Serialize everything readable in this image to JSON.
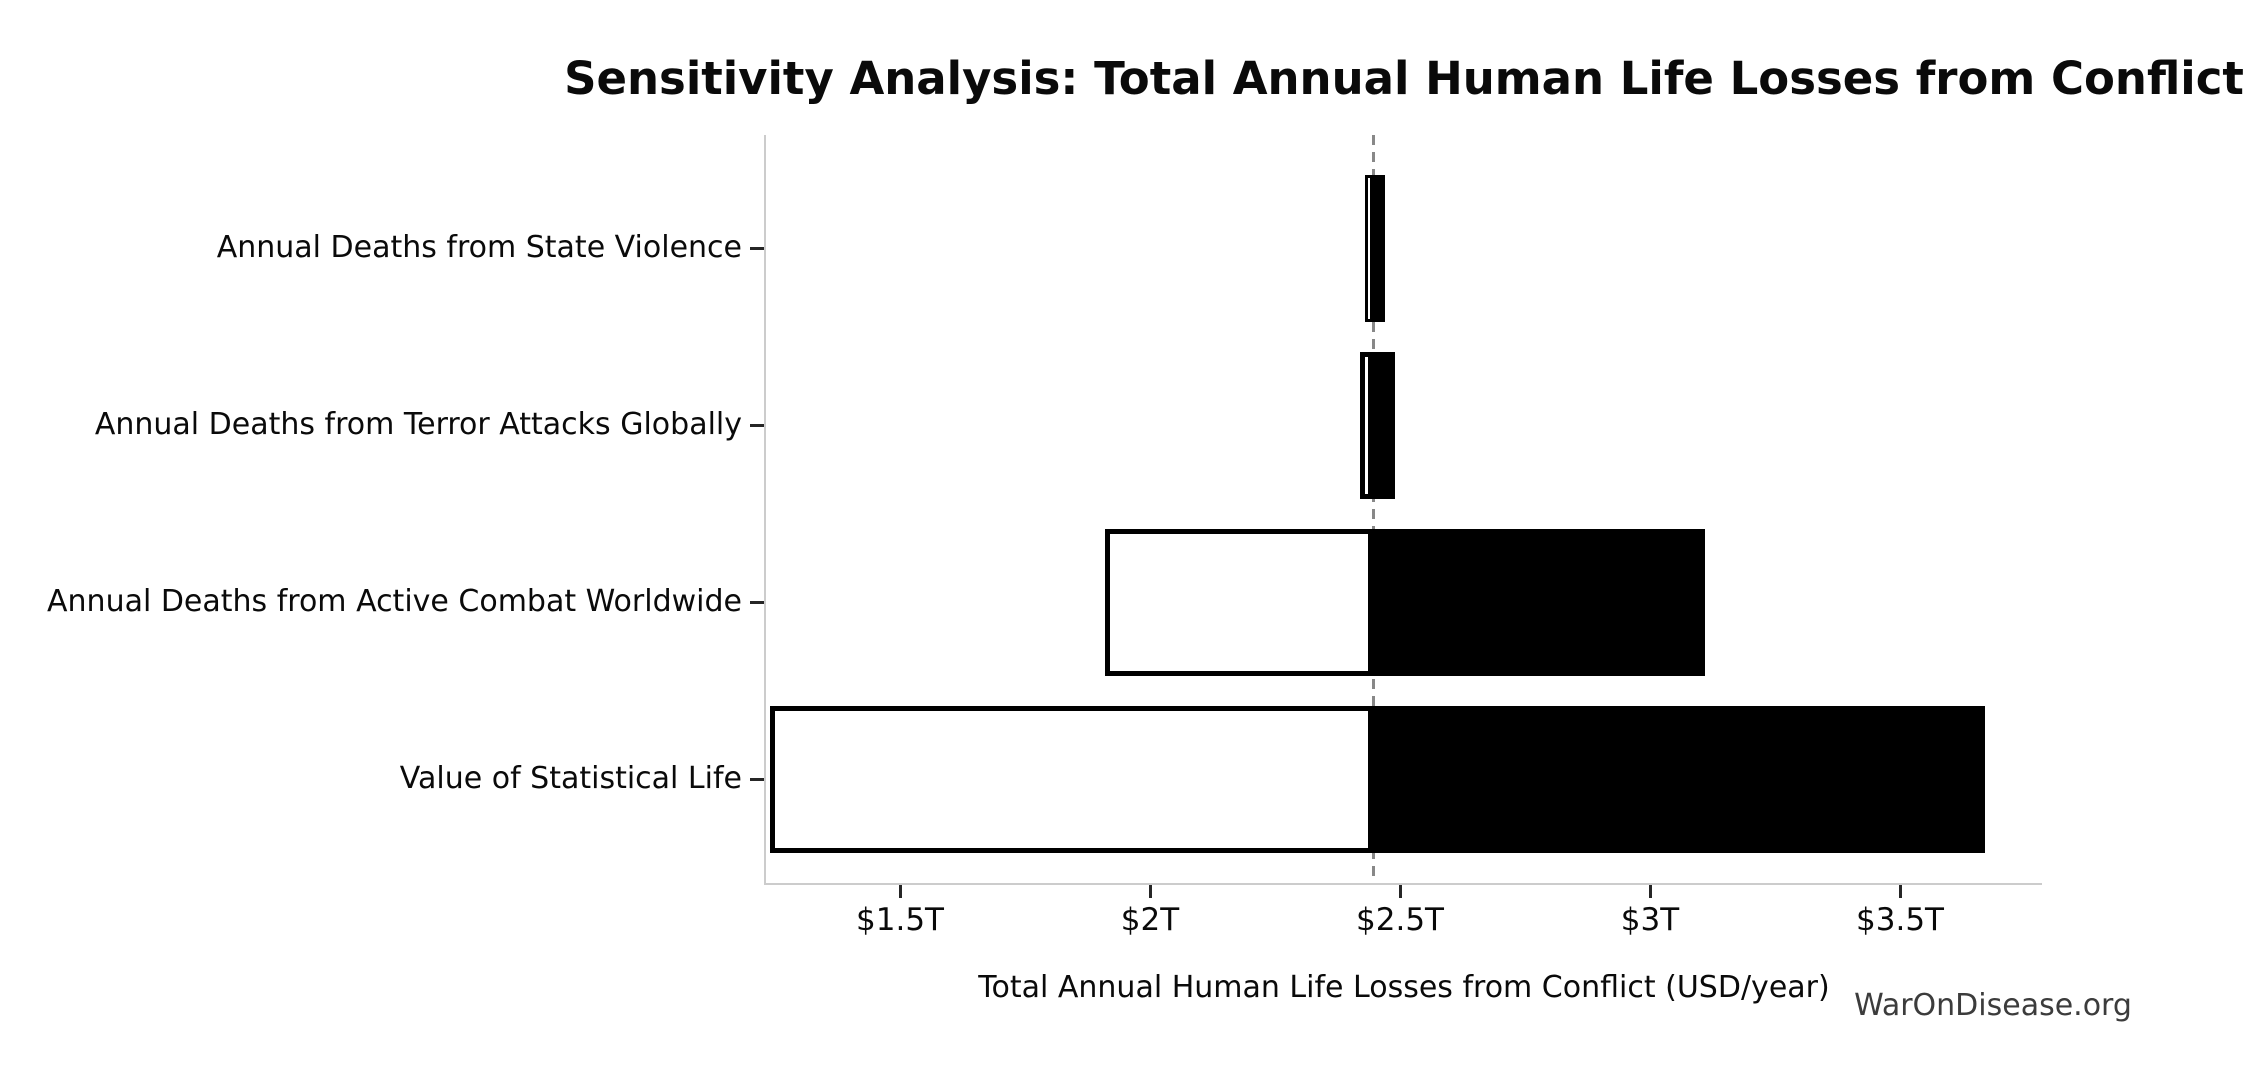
{
  "watermark": {
    "text": "WarOnDisease.org",
    "color": "#3c3c3c"
  },
  "chart_data": {
    "type": "bar",
    "subtype": "tornado-sensitivity",
    "orientation": "horizontal",
    "title": "Sensitivity Analysis: Total Annual Human Life Losses from Conflict",
    "xlabel": "Total Annual Human Life Losses from Conflict (USD/year)",
    "ylabel": "",
    "unit": "trillion USD per year",
    "categories": [
      "Annual Deaths from State Violence",
      "Annual Deaths from Terror Attacks Globally",
      "Annual Deaths from Active Combat Worldwide",
      "Value of Statistical Life"
    ],
    "base_value": 2.446,
    "series": [
      {
        "name": "low",
        "values": [
          2.43,
          2.42,
          1.91,
          1.24
        ]
      },
      {
        "name": "high",
        "values": [
          2.47,
          2.49,
          3.11,
          3.67
        ]
      }
    ],
    "x_ticks": [
      {
        "value": 1.5,
        "label": "$1.5T"
      },
      {
        "value": 2.0,
        "label": "$2T"
      },
      {
        "value": 2.5,
        "label": "$2.5T"
      },
      {
        "value": 3.0,
        "label": "$3T"
      },
      {
        "value": 3.5,
        "label": "$3.5T"
      }
    ],
    "xlim": [
      1.232,
      3.784
    ],
    "grid": false,
    "legend_position": "none",
    "colors": {
      "low_fill": "#ffffff",
      "high_fill": "#000000",
      "bar_edge": "#000000",
      "baseline_dash": "#888888",
      "spine": "#cccccc"
    }
  }
}
